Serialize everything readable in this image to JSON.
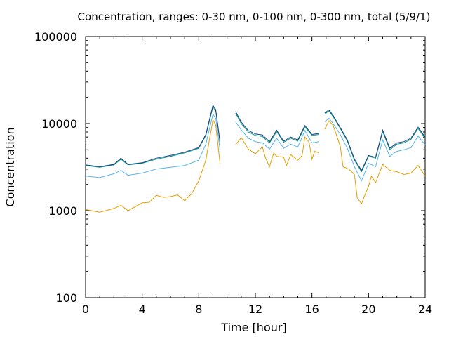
{
  "chart_data": {
    "type": "line",
    "title": "Concentration, ranges: 0-30 nm, 0-100 nm, 0-300 nm, total (5/9/1)",
    "xlabel": "Time [hour]",
    "ylabel": "Concentration",
    "x_scale": "linear",
    "y_scale": "log",
    "xlim": [
      0,
      24
    ],
    "ylim": [
      100,
      100000
    ],
    "x_ticks": [
      0,
      4,
      8,
      12,
      16,
      20,
      24
    ],
    "x_tick_labels": [
      "0",
      "4",
      "8",
      "12",
      "16",
      "20",
      "24"
    ],
    "y_ticks": [
      100,
      1000,
      10000,
      100000
    ],
    "y_tick_labels": [
      "100",
      "1000",
      "10000",
      "100000"
    ],
    "grid": false,
    "legend": "none",
    "series": [
      {
        "color": "#e69f00",
        "segments": [
          {
            "x": [
              0,
              1,
              2,
              2.5,
              3,
              4,
              4.5,
              5,
              5.5,
              6,
              6.5,
              7,
              7.5,
              8,
              8.5,
              9,
              9.2,
              9.5
            ],
            "y": [
              1030,
              960,
              1060,
              1150,
              1000,
              1230,
              1250,
              1500,
              1420,
              1450,
              1520,
              1300,
              1570,
              2200,
              3800,
              11000,
              9600,
              3500
            ]
          },
          {
            "x": [
              10.6,
              11,
              11.5,
              12,
              12.5,
              12.7,
              13,
              13.3,
              13.5,
              14,
              14.2,
              14.5,
              15,
              15.3,
              15.5,
              15.8,
              16,
              16.2,
              16.5
            ],
            "y": [
              5700,
              6900,
              5100,
              4500,
              5400,
              4100,
              3200,
              4600,
              4200,
              4100,
              3300,
              4400,
              3800,
              4300,
              7000,
              6100,
              3900,
              4800,
              4600
            ]
          },
          {
            "x": [
              16.9,
              17.2,
              17.5,
              18,
              18.2,
              18.6,
              19,
              19.2,
              19.5,
              19.8,
              20,
              20.2,
              20.5,
              21,
              21.5,
              22,
              22.5,
              23,
              23.5,
              24
            ],
            "y": [
              8600,
              10800,
              9500,
              5500,
              3200,
              3000,
              2600,
              1400,
              1200,
              1600,
              1900,
              2500,
              2100,
              3400,
              2900,
              2800,
              2600,
              2700,
              3300,
              2500
            ]
          }
        ]
      },
      {
        "color": "#56b4e9",
        "segments": [
          {
            "x": [
              0,
              1,
              2,
              2.5,
              3,
              4,
              5,
              6,
              7,
              8,
              8.5,
              9,
              9.2,
              9.5
            ],
            "y": [
              2500,
              2400,
              2650,
              2900,
              2550,
              2700,
              3000,
              3150,
              3300,
              3800,
              5800,
              12800,
              11500,
              5000
            ]
          },
          {
            "x": [
              10.6,
              11,
              11.5,
              12,
              12.5,
              13,
              13.5,
              14,
              14.5,
              15,
              15.5,
              16,
              16.5
            ],
            "y": [
              10500,
              8500,
              6800,
              6200,
              6000,
              5100,
              6800,
              5200,
              5800,
              5400,
              8300,
              6000,
              6200
            ]
          },
          {
            "x": [
              16.9,
              17.2,
              17.5,
              18,
              18.5,
              19,
              19.5,
              20,
              20.5,
              21,
              21.5,
              22,
              22.5,
              23,
              23.5,
              24
            ],
            "y": [
              10500,
              11500,
              10000,
              7500,
              5200,
              3200,
              2200,
              3500,
              3200,
              6500,
              4200,
              4800,
              5000,
              5300,
              7200,
              5700
            ]
          }
        ]
      },
      {
        "color": "#009e73",
        "segments": [
          {
            "x": [
              0,
              1,
              2,
              2.5,
              3,
              4,
              5,
              6,
              7,
              8,
              8.5,
              9,
              9.2,
              9.5
            ],
            "y": [
              3300,
              3150,
              3350,
              3900,
              3350,
              3500,
              3900,
              4200,
              4600,
              5200,
              7300,
              15600,
              14000,
              6000
            ]
          },
          {
            "x": [
              10.6,
              11,
              11.5,
              12,
              12.5,
              13,
              13.5,
              14,
              14.5,
              15,
              15.5,
              16,
              16.5
            ],
            "y": [
              13200,
              10000,
              8000,
              7300,
              7100,
              6000,
              8100,
              6100,
              6800,
              6300,
              9200,
              7300,
              7500
            ]
          },
          {
            "x": [
              16.9,
              17.2,
              17.5,
              18,
              18.5,
              19,
              19.5,
              20,
              20.5,
              21,
              21.5,
              22,
              22.5,
              23,
              23.5,
              24
            ],
            "y": [
              12800,
              14000,
              12000,
              8800,
              6300,
              3800,
              2800,
              4200,
              4000,
              8100,
              5000,
              5800,
              6000,
              6600,
              8800,
              6800
            ]
          }
        ]
      },
      {
        "color": "#1f3a93",
        "segments": [
          {
            "x": [
              0,
              1,
              2,
              2.5,
              3,
              4,
              5,
              6,
              7,
              8,
              8.5,
              9,
              9.2,
              9.5
            ],
            "y": [
              3350,
              3200,
              3400,
              4000,
              3400,
              3550,
              4000,
              4300,
              4700,
              5300,
              7500,
              16200,
              14500,
              6200
            ]
          },
          {
            "x": [
              10.6,
              11,
              11.5,
              12,
              12.5,
              13,
              13.5,
              14,
              14.5,
              15,
              15.5,
              16,
              16.5
            ],
            "y": [
              13800,
              10400,
              8300,
              7600,
              7400,
              6200,
              8400,
              6300,
              7000,
              6500,
              9500,
              7500,
              7700
            ]
          },
          {
            "x": [
              16.9,
              17.2,
              17.5,
              18,
              18.5,
              19,
              19.5,
              20,
              20.5,
              21,
              21.5,
              22,
              22.5,
              23,
              23.5,
              24
            ],
            "y": [
              13200,
              14400,
              12400,
              9000,
              6500,
              3900,
              2900,
              4300,
              4100,
              8400,
              5200,
              6000,
              6200,
              6800,
              9100,
              7000
            ]
          }
        ]
      }
    ]
  }
}
